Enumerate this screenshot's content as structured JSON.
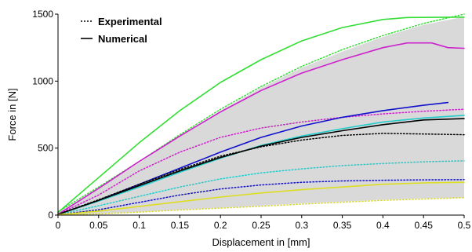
{
  "chart_data": {
    "type": "line",
    "title": "",
    "xlabel": "Displacement in [mm]",
    "ylabel": "Force in [N]",
    "xlim": [
      0,
      0.5
    ],
    "ylim": [
      0,
      1500
    ],
    "xticks": [
      "0",
      "0.05",
      "0.1",
      "0.15",
      "0.2",
      "0.25",
      "0.3",
      "0.35",
      "0.4",
      "0.45",
      "0.5"
    ],
    "yticks": [
      "0",
      "500",
      "1000",
      "1500"
    ],
    "grid": false,
    "legend": {
      "position": "top-left",
      "entries": [
        {
          "label": "Experimental",
          "style": "dotted"
        },
        {
          "label": "Numerical",
          "style": "solid"
        }
      ]
    },
    "band": {
      "fill": "#d9d9d9",
      "upper": [
        [
          0,
          20
        ],
        [
          0.05,
          200
        ],
        [
          0.1,
          390
        ],
        [
          0.15,
          590
        ],
        [
          0.2,
          780
        ],
        [
          0.25,
          950
        ],
        [
          0.3,
          1100
        ],
        [
          0.35,
          1220
        ],
        [
          0.4,
          1330
        ],
        [
          0.45,
          1420
        ],
        [
          0.5,
          1480
        ]
      ],
      "lower": [
        [
          0,
          0
        ],
        [
          0.05,
          10
        ],
        [
          0.1,
          25
        ],
        [
          0.15,
          40
        ],
        [
          0.2,
          55
        ],
        [
          0.25,
          70
        ],
        [
          0.3,
          88
        ],
        [
          0.35,
          100
        ],
        [
          0.4,
          115
        ],
        [
          0.45,
          125
        ],
        [
          0.5,
          130
        ]
      ]
    },
    "series": [
      {
        "color": "#33dd33",
        "style": "solid",
        "points": [
          [
            0,
            20
          ],
          [
            0.05,
            280
          ],
          [
            0.1,
            540
          ],
          [
            0.15,
            780
          ],
          [
            0.2,
            990
          ],
          [
            0.25,
            1160
          ],
          [
            0.3,
            1300
          ],
          [
            0.35,
            1400
          ],
          [
            0.4,
            1460
          ],
          [
            0.43,
            1475
          ],
          [
            0.5,
            1478
          ]
        ]
      },
      {
        "color": "#33dd33",
        "style": "dotted",
        "points": [
          [
            0,
            25
          ],
          [
            0.05,
            210
          ],
          [
            0.1,
            400
          ],
          [
            0.15,
            600
          ],
          [
            0.2,
            790
          ],
          [
            0.25,
            960
          ],
          [
            0.3,
            1110
          ],
          [
            0.35,
            1235
          ],
          [
            0.4,
            1340
          ],
          [
            0.45,
            1430
          ],
          [
            0.5,
            1500
          ]
        ]
      },
      {
        "color": "#cc22cc",
        "style": "solid",
        "points": [
          [
            0,
            5
          ],
          [
            0.05,
            200
          ],
          [
            0.1,
            400
          ],
          [
            0.15,
            590
          ],
          [
            0.2,
            770
          ],
          [
            0.25,
            930
          ],
          [
            0.3,
            1060
          ],
          [
            0.35,
            1160
          ],
          [
            0.4,
            1250
          ],
          [
            0.43,
            1285
          ],
          [
            0.46,
            1285
          ],
          [
            0.48,
            1250
          ],
          [
            0.5,
            1245
          ]
        ]
      },
      {
        "color": "#cc22cc",
        "style": "dotted",
        "points": [
          [
            0,
            5
          ],
          [
            0.05,
            150
          ],
          [
            0.1,
            330
          ],
          [
            0.15,
            470
          ],
          [
            0.2,
            580
          ],
          [
            0.25,
            650
          ],
          [
            0.3,
            695
          ],
          [
            0.35,
            730
          ],
          [
            0.4,
            755
          ],
          [
            0.45,
            775
          ],
          [
            0.5,
            790
          ]
        ]
      },
      {
        "color": "#1111cc",
        "style": "solid",
        "points": [
          [
            0,
            5
          ],
          [
            0.05,
            110
          ],
          [
            0.1,
            230
          ],
          [
            0.15,
            350
          ],
          [
            0.2,
            470
          ],
          [
            0.25,
            580
          ],
          [
            0.3,
            665
          ],
          [
            0.35,
            730
          ],
          [
            0.4,
            780
          ],
          [
            0.45,
            820
          ],
          [
            0.48,
            840
          ]
        ]
      },
      {
        "color": "#1111cc",
        "style": "dotted",
        "points": [
          [
            0,
            3
          ],
          [
            0.05,
            40
          ],
          [
            0.1,
            95
          ],
          [
            0.15,
            150
          ],
          [
            0.2,
            195
          ],
          [
            0.25,
            225
          ],
          [
            0.3,
            245
          ],
          [
            0.35,
            255
          ],
          [
            0.4,
            260
          ],
          [
            0.45,
            263
          ],
          [
            0.5,
            265
          ]
        ]
      },
      {
        "color": "#22cccc",
        "style": "solid",
        "points": [
          [
            0,
            5
          ],
          [
            0.05,
            105
          ],
          [
            0.1,
            210
          ],
          [
            0.15,
            320
          ],
          [
            0.2,
            425
          ],
          [
            0.25,
            520
          ],
          [
            0.3,
            590
          ],
          [
            0.35,
            645
          ],
          [
            0.4,
            695
          ],
          [
            0.45,
            725
          ],
          [
            0.5,
            745
          ]
        ]
      },
      {
        "color": "#22cccc",
        "style": "dotted",
        "points": [
          [
            0,
            3
          ],
          [
            0.05,
            70
          ],
          [
            0.1,
            140
          ],
          [
            0.15,
            210
          ],
          [
            0.2,
            270
          ],
          [
            0.25,
            315
          ],
          [
            0.3,
            345
          ],
          [
            0.35,
            370
          ],
          [
            0.4,
            385
          ],
          [
            0.45,
            398
          ],
          [
            0.5,
            405
          ]
        ]
      },
      {
        "color": "#000000",
        "style": "solid",
        "points": [
          [
            0,
            5
          ],
          [
            0.05,
            110
          ],
          [
            0.1,
            220
          ],
          [
            0.15,
            330
          ],
          [
            0.2,
            430
          ],
          [
            0.25,
            515
          ],
          [
            0.3,
            580
          ],
          [
            0.35,
            630
          ],
          [
            0.4,
            675
          ],
          [
            0.45,
            710
          ],
          [
            0.5,
            720
          ]
        ]
      },
      {
        "color": "#000000",
        "style": "dotted",
        "points": [
          [
            0,
            5
          ],
          [
            0.05,
            115
          ],
          [
            0.1,
            230
          ],
          [
            0.15,
            340
          ],
          [
            0.2,
            440
          ],
          [
            0.25,
            510
          ],
          [
            0.3,
            560
          ],
          [
            0.35,
            595
          ],
          [
            0.4,
            610
          ],
          [
            0.45,
            605
          ],
          [
            0.5,
            600
          ]
        ]
      },
      {
        "color": "#dddd22",
        "style": "solid",
        "points": [
          [
            0,
            3
          ],
          [
            0.05,
            30
          ],
          [
            0.1,
            65
          ],
          [
            0.15,
            100
          ],
          [
            0.2,
            135
          ],
          [
            0.25,
            165
          ],
          [
            0.3,
            190
          ],
          [
            0.35,
            210
          ],
          [
            0.4,
            230
          ],
          [
            0.45,
            240
          ],
          [
            0.5,
            245
          ]
        ]
      },
      {
        "color": "#dddd22",
        "style": "dotted",
        "points": [
          [
            0,
            1
          ],
          [
            0.05,
            10
          ],
          [
            0.1,
            22
          ],
          [
            0.15,
            38
          ],
          [
            0.2,
            52
          ],
          [
            0.25,
            66
          ],
          [
            0.3,
            82
          ],
          [
            0.35,
            96
          ],
          [
            0.4,
            110
          ],
          [
            0.45,
            120
          ],
          [
            0.5,
            130
          ]
        ]
      }
    ]
  }
}
